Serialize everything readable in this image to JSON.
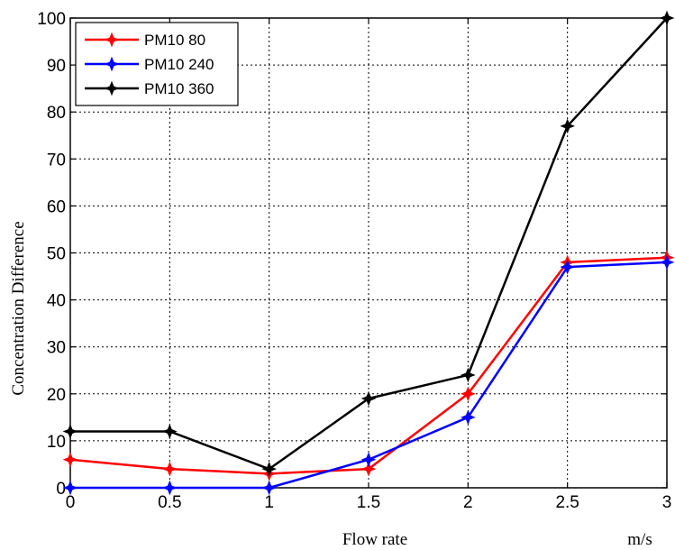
{
  "chart_data": {
    "type": "line",
    "title": "",
    "xlabel": "Flow rate",
    "xunit": "m/s",
    "ylabel": "Concentration Difference",
    "xlim": [
      0,
      3
    ],
    "ylim": [
      0,
      100
    ],
    "xticks": [
      0,
      0.5,
      1,
      1.5,
      2,
      2.5,
      3
    ],
    "xtick_labels": [
      "0",
      "0.5",
      "1",
      "1.5",
      "2",
      "2.5",
      "3"
    ],
    "yticks": [
      0,
      10,
      20,
      30,
      40,
      50,
      60,
      70,
      80,
      90,
      100
    ],
    "ytick_labels": [
      "0",
      "10",
      "20",
      "30",
      "40",
      "50",
      "60",
      "70",
      "80",
      "90",
      "100"
    ],
    "grid": true,
    "legend_position": "top-left",
    "x": [
      0,
      0.5,
      1,
      1.5,
      2,
      2.5,
      3
    ],
    "series": [
      {
        "name": "PM10 80",
        "color": "#ff0000",
        "values": [
          6,
          4,
          3,
          4,
          20,
          48,
          49
        ]
      },
      {
        "name": "PM10 240",
        "color": "#0000ff",
        "values": [
          0,
          0,
          0,
          6,
          15,
          47,
          48
        ]
      },
      {
        "name": "PM10 360",
        "color": "#000000",
        "values": [
          12,
          12,
          4,
          19,
          24,
          77,
          100
        ]
      }
    ]
  }
}
